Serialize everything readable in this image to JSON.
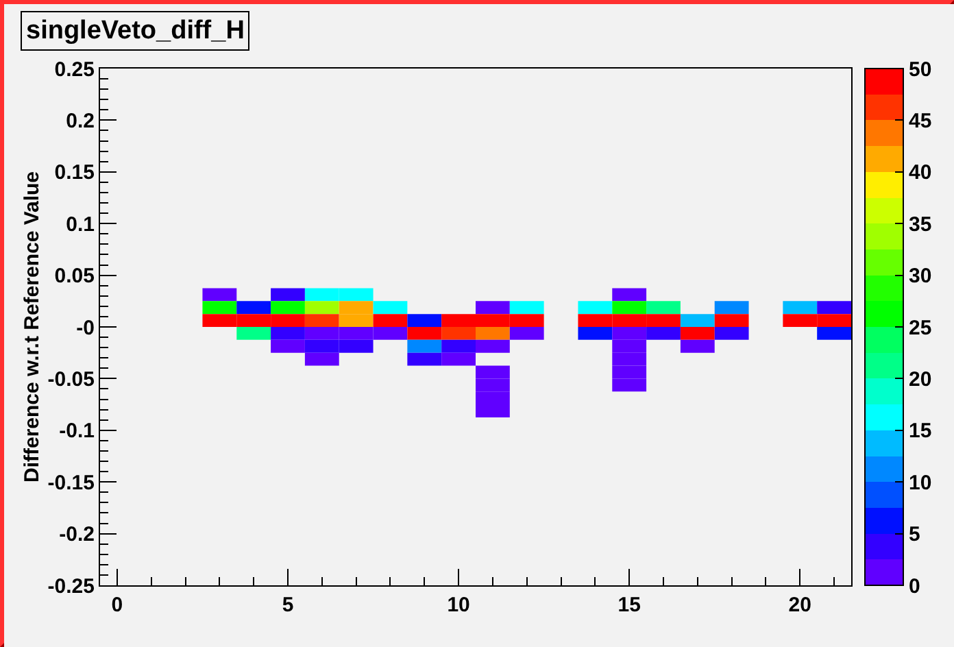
{
  "chart_data": {
    "type": "heatmap",
    "title": "singleVeto_diff_H",
    "ylabel": "Difference w.r.t Reference Value",
    "x": [
      3,
      4,
      5,
      6,
      7,
      8,
      9,
      10,
      11,
      12,
      13,
      14,
      15,
      16,
      17,
      18,
      19,
      20,
      21
    ],
    "y": [
      0.03125,
      0.01875,
      0.00625,
      -0.00625,
      -0.01875,
      -0.03125,
      -0.04375,
      -0.05625,
      -0.06875,
      -0.08125
    ],
    "cells": [
      [
        1,
        null,
        4,
        16,
        16,
        null,
        null,
        null,
        null,
        null,
        null,
        null,
        1,
        null,
        null,
        null,
        null,
        null,
        null
      ],
      [
        26,
        6,
        26,
        34,
        41,
        16,
        null,
        null,
        1,
        16,
        null,
        16,
        27,
        21,
        null,
        11,
        null,
        14,
        4
      ],
      [
        49,
        49,
        49,
        46,
        41,
        49,
        6,
        49,
        49,
        49,
        null,
        49,
        49,
        49,
        14,
        49,
        null,
        49,
        49
      ],
      [
        null,
        21,
        4,
        1,
        1,
        1,
        49,
        46,
        44,
        1,
        null,
        6,
        1,
        4,
        49,
        4,
        null,
        null,
        6
      ],
      [
        null,
        null,
        1,
        4,
        4,
        null,
        11,
        4,
        1,
        null,
        null,
        null,
        1,
        null,
        1,
        null,
        null,
        null,
        null
      ],
      [
        null,
        null,
        null,
        1,
        null,
        null,
        4,
        1,
        null,
        null,
        null,
        null,
        1,
        null,
        null,
        null,
        null,
        null,
        null
      ],
      [
        null,
        null,
        null,
        null,
        null,
        null,
        null,
        null,
        1,
        null,
        null,
        null,
        1,
        null,
        null,
        null,
        null,
        null,
        null
      ],
      [
        null,
        null,
        null,
        null,
        null,
        null,
        null,
        null,
        1,
        null,
        null,
        null,
        1,
        null,
        null,
        null,
        null,
        null,
        null
      ],
      [
        null,
        null,
        null,
        null,
        null,
        null,
        null,
        null,
        1,
        null,
        null,
        null,
        null,
        null,
        null,
        null,
        null,
        null,
        null
      ],
      [
        null,
        null,
        null,
        null,
        null,
        null,
        null,
        null,
        1,
        null,
        null,
        null,
        null,
        null,
        null,
        null,
        null,
        null,
        null
      ]
    ],
    "xlim": [
      -0.5,
      21.5
    ],
    "xticks": [
      0,
      5,
      10,
      15,
      20
    ],
    "ylim": [
      -0.25,
      0.25
    ],
    "yticks": [
      -0.25,
      -0.2,
      -0.15,
      -0.1,
      -0.05,
      {
        "value": 0,
        "label": "-0"
      },
      0.05,
      0.1,
      0.15,
      0.2,
      0.25
    ],
    "clim": [
      0,
      50
    ],
    "cticks": [
      0,
      5,
      10,
      15,
      20,
      25,
      30,
      35,
      40,
      45,
      50
    ]
  }
}
